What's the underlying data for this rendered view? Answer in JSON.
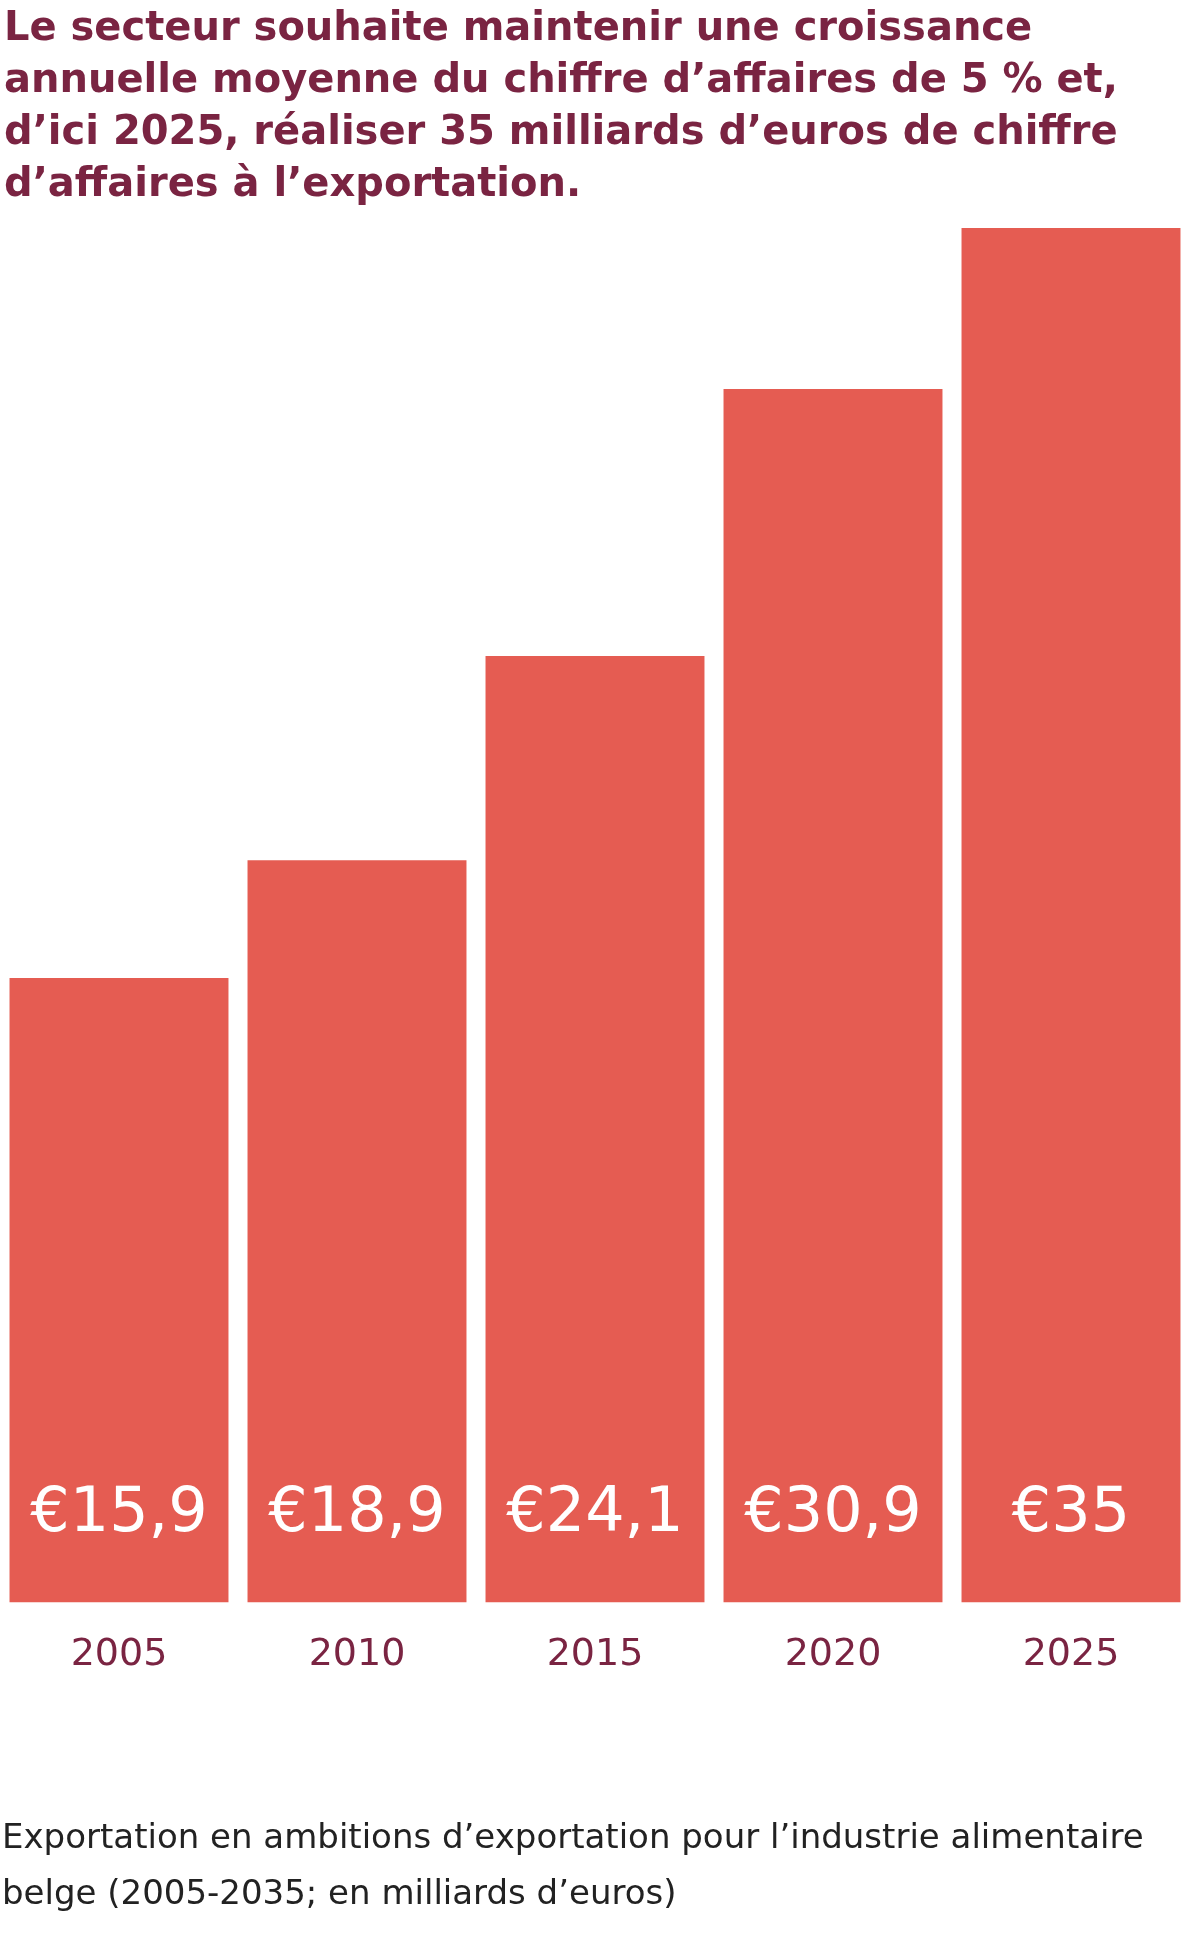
{
  "chart_data": {
    "type": "bar",
    "title": "Le secteur souhaite maintenir une croissance annuelle moyenne du chiffre d’affaires de 5 % et, d’ici 2025, réaliser 35 milliards d’euros de chiffre d’affaires à l’exportation.",
    "categories": [
      "2005",
      "2010",
      "2015",
      "2020",
      "2025"
    ],
    "values": [
      15.9,
      18.9,
      24.1,
      30.9,
      35
    ],
    "value_labels": [
      "€15,9",
      "€18,9",
      "€24,1",
      "€30,9",
      "€35"
    ],
    "color": "#e55c52",
    "grid": false,
    "legend": false,
    "tick_labels": "x",
    "annotations": [
      "Exportation en ambitions d’exportation pour l’industrie alimentaire belge (2005-2035; en milliards d’euros)"
    ]
  }
}
